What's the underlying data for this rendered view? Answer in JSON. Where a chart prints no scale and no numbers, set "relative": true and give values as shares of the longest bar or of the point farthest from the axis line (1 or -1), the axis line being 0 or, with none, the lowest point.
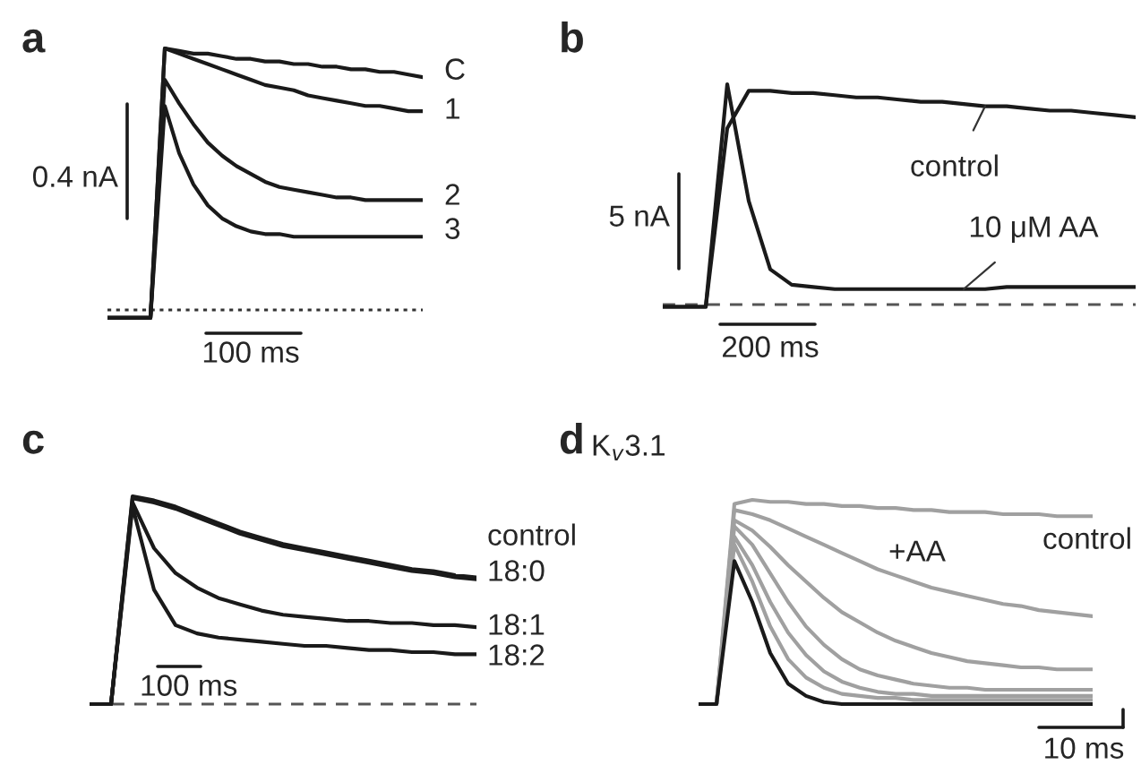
{
  "chart_data": [
    {
      "type": "line",
      "title": "a",
      "relative": true,
      "tick_labels": false,
      "categories": [
        null,
        null,
        null,
        null,
        null,
        null,
        null,
        null,
        null,
        null,
        null,
        null,
        null,
        null,
        null,
        null,
        null,
        null,
        null,
        null,
        null,
        null,
        null
      ],
      "series": [
        {
          "name": "C",
          "color": "#1a1a1a",
          "values": [
            -0.03,
            -0.03,
            -0.03,
            -0.03,
            1.0,
            0.99,
            0.98,
            0.98,
            0.97,
            0.96,
            0.96,
            0.95,
            0.95,
            0.94,
            0.94,
            0.93,
            0.93,
            0.92,
            0.92,
            0.91,
            0.91,
            0.9,
            0.89
          ]
        },
        {
          "name": "1",
          "color": "#1a1a1a",
          "values": [
            -0.03,
            -0.03,
            -0.03,
            -0.03,
            1.0,
            0.98,
            0.96,
            0.94,
            0.92,
            0.9,
            0.88,
            0.86,
            0.85,
            0.84,
            0.82,
            0.81,
            0.8,
            0.79,
            0.78,
            0.78,
            0.77,
            0.76,
            0.76
          ]
        },
        {
          "name": "2",
          "color": "#1a1a1a",
          "values": [
            -0.03,
            -0.03,
            -0.03,
            -0.03,
            0.88,
            0.79,
            0.71,
            0.64,
            0.59,
            0.55,
            0.52,
            0.49,
            0.47,
            0.46,
            0.45,
            0.44,
            0.43,
            0.43,
            0.42,
            0.42,
            0.42,
            0.42,
            0.42
          ]
        },
        {
          "name": "3",
          "color": "#1a1a1a",
          "values": [
            -0.03,
            -0.03,
            -0.03,
            -0.03,
            0.78,
            0.6,
            0.48,
            0.4,
            0.35,
            0.32,
            0.3,
            0.29,
            0.29,
            0.28,
            0.28,
            0.28,
            0.28,
            0.28,
            0.28,
            0.28,
            0.28,
            0.28,
            0.28
          ]
        }
      ],
      "ref_lines": [
        {
          "axis": "y",
          "value": 0,
          "line_style": "dotted",
          "color": "#333333"
        }
      ],
      "annotations": [
        "0.4 nA",
        "100 ms"
      ]
    },
    {
      "type": "line",
      "title": "b",
      "relative": true,
      "tick_labels": false,
      "categories": [
        null,
        null,
        null,
        null,
        null,
        null,
        null,
        null,
        null,
        null,
        null,
        null,
        null,
        null,
        null,
        null,
        null,
        null,
        null,
        null,
        null,
        null,
        null
      ],
      "series": [
        {
          "name": "control",
          "color": "#1a1a1a",
          "values": [
            -0.01,
            -0.01,
            -0.01,
            0.8,
            0.97,
            0.97,
            0.96,
            0.96,
            0.95,
            0.94,
            0.94,
            0.93,
            0.92,
            0.92,
            0.91,
            0.9,
            0.9,
            0.89,
            0.88,
            0.88,
            0.87,
            0.86,
            0.85
          ]
        },
        {
          "name": "10 μM AA",
          "color": "#1a1a1a",
          "values": [
            -0.01,
            -0.01,
            -0.01,
            1.0,
            0.47,
            0.16,
            0.09,
            0.08,
            0.07,
            0.07,
            0.07,
            0.07,
            0.07,
            0.07,
            0.07,
            0.07,
            0.08,
            0.08,
            0.08,
            0.08,
            0.08,
            0.08,
            0.08
          ]
        }
      ],
      "ref_lines": [
        {
          "axis": "y",
          "value": 0,
          "line_style": "dashed",
          "color": "#555555"
        }
      ],
      "annotations": [
        "5 nA",
        "200 ms"
      ]
    },
    {
      "type": "line",
      "title": "c",
      "relative": true,
      "tick_labels": false,
      "categories": [
        null,
        null,
        null,
        null,
        null,
        null,
        null,
        null,
        null,
        null,
        null,
        null,
        null,
        null,
        null,
        null,
        null,
        null,
        null
      ],
      "series": [
        {
          "name": "control",
          "color": "#1a1a1a",
          "values": [
            0,
            0,
            1.0,
            0.98,
            0.95,
            0.91,
            0.87,
            0.83,
            0.8,
            0.77,
            0.75,
            0.73,
            0.71,
            0.69,
            0.67,
            0.65,
            0.64,
            0.62,
            0.61
          ]
        },
        {
          "name": "18:0",
          "color": "#1a1a1a",
          "values": [
            0,
            0,
            0.99,
            0.97,
            0.94,
            0.9,
            0.86,
            0.82,
            0.79,
            0.76,
            0.74,
            0.72,
            0.7,
            0.68,
            0.66,
            0.64,
            0.63,
            0.61,
            0.6
          ]
        },
        {
          "name": "18:1",
          "color": "#1a1a1a",
          "values": [
            0,
            0,
            0.97,
            0.75,
            0.63,
            0.56,
            0.51,
            0.48,
            0.45,
            0.43,
            0.42,
            0.41,
            0.4,
            0.4,
            0.39,
            0.39,
            0.38,
            0.38,
            0.37
          ]
        },
        {
          "name": "18:2",
          "color": "#1a1a1a",
          "values": [
            0,
            0,
            0.95,
            0.55,
            0.38,
            0.34,
            0.32,
            0.31,
            0.3,
            0.29,
            0.28,
            0.28,
            0.27,
            0.26,
            0.26,
            0.25,
            0.25,
            0.24,
            0.24
          ]
        }
      ],
      "ref_lines": [
        {
          "axis": "y",
          "value": 0,
          "line_style": "dashed",
          "color": "#555555"
        }
      ],
      "annotations": [
        "100 ms"
      ]
    },
    {
      "type": "line",
      "title": "d",
      "subtitle": "K$_{v}$3.1",
      "relative": true,
      "tick_labels": false,
      "categories": [
        null,
        null,
        null,
        null,
        null,
        null,
        null,
        null,
        null,
        null,
        null,
        null,
        null,
        null,
        null,
        null,
        null,
        null,
        null,
        null,
        null,
        null,
        null
      ],
      "series": [
        {
          "name": "control",
          "color": "#a0a0a0",
          "values": [
            0,
            0,
            0.98,
            1.0,
            0.99,
            0.99,
            0.98,
            0.98,
            0.97,
            0.97,
            0.96,
            0.96,
            0.95,
            0.95,
            0.94,
            0.94,
            0.94,
            0.93,
            0.93,
            0.93,
            0.92,
            0.92,
            0.92
          ]
        },
        {
          "color": "#a0a0a0",
          "values": [
            0,
            0,
            0.95,
            0.93,
            0.9,
            0.86,
            0.82,
            0.78,
            0.74,
            0.7,
            0.66,
            0.63,
            0.6,
            0.57,
            0.55,
            0.53,
            0.51,
            0.49,
            0.48,
            0.46,
            0.45,
            0.44,
            0.43
          ]
        },
        {
          "color": "#a0a0a0",
          "values": [
            0,
            0,
            0.9,
            0.85,
            0.77,
            0.68,
            0.6,
            0.52,
            0.45,
            0.4,
            0.35,
            0.31,
            0.28,
            0.25,
            0.23,
            0.21,
            0.2,
            0.19,
            0.18,
            0.18,
            0.17,
            0.17,
            0.17
          ]
        },
        {
          "color": "#a0a0a0",
          "values": [
            0,
            0,
            0.87,
            0.78,
            0.64,
            0.5,
            0.38,
            0.29,
            0.22,
            0.17,
            0.14,
            0.12,
            0.1,
            0.09,
            0.08,
            0.08,
            0.07,
            0.07,
            0.07,
            0.07,
            0.07,
            0.07,
            0.07
          ]
        },
        {
          "color": "#a0a0a0",
          "values": [
            0,
            0,
            0.82,
            0.68,
            0.5,
            0.35,
            0.24,
            0.16,
            0.11,
            0.08,
            0.06,
            0.05,
            0.05,
            0.04,
            0.04,
            0.04,
            0.04,
            0.04,
            0.04,
            0.04,
            0.04,
            0.04,
            0.04
          ]
        },
        {
          "color": "#a0a0a0",
          "values": [
            0,
            0,
            0.78,
            0.6,
            0.38,
            0.22,
            0.13,
            0.08,
            0.05,
            0.04,
            0.03,
            0.03,
            0.02,
            0.02,
            0.02,
            0.02,
            0.02,
            0.02,
            0.02,
            0.02,
            0.02,
            0.02,
            0.02
          ]
        },
        {
          "color": "#1a1a1a",
          "values": [
            0,
            0,
            0.7,
            0.5,
            0.25,
            0.1,
            0.04,
            0.01,
            0,
            0,
            0,
            0,
            0,
            0,
            0,
            0,
            0,
            0,
            0,
            0,
            0,
            0,
            0
          ]
        }
      ],
      "annotations": [
        "+AA",
        "10 ms"
      ]
    }
  ]
}
